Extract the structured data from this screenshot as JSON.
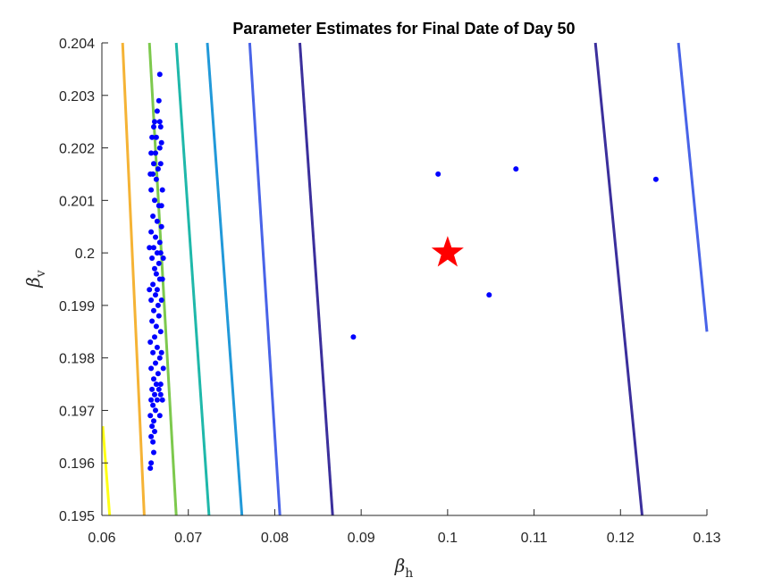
{
  "chart_data": {
    "type": "scatter",
    "title": "Parameter Estimates for Final Date of Day 50",
    "xlabel": {
      "main": "β",
      "sub": "h"
    },
    "ylabel": {
      "main": "β",
      "sub": "v"
    },
    "xlim": [
      0.06,
      0.13
    ],
    "ylim": [
      0.195,
      0.204
    ],
    "xticks": [
      "0.06",
      "0.07",
      "0.08",
      "0.09",
      "0.1",
      "0.11",
      "0.12",
      "0.13"
    ],
    "yticks": [
      "0.195",
      "0.196",
      "0.197",
      "0.198",
      "0.199",
      "0.2",
      "0.201",
      "0.202",
      "0.203",
      "0.204"
    ],
    "true_value": {
      "x": 0.1,
      "y": 0.2,
      "color": "#ff0000"
    },
    "contours": [
      {
        "color": "#ffff14",
        "points": [
          [
            0.0601,
            0.1967
          ],
          [
            0.0609,
            0.195
          ]
        ]
      },
      {
        "color": "#f5b335",
        "points": [
          [
            0.0624,
            0.204
          ],
          [
            0.0649,
            0.195
          ]
        ]
      },
      {
        "color": "#7dc94d",
        "points": [
          [
            0.0655,
            0.204
          ],
          [
            0.0686,
            0.195
          ]
        ]
      },
      {
        "color": "#1fb8aa",
        "points": [
          [
            0.0686,
            0.204
          ],
          [
            0.0724,
            0.195
          ]
        ]
      },
      {
        "color": "#2199d9",
        "points": [
          [
            0.0722,
            0.204
          ],
          [
            0.0762,
            0.195
          ]
        ]
      },
      {
        "color": "#4863e8",
        "points": [
          [
            0.0771,
            0.204
          ],
          [
            0.0806,
            0.195
          ]
        ]
      },
      {
        "color": "#3b2f9c",
        "points": [
          [
            0.0829,
            0.204
          ],
          [
            0.0867,
            0.195
          ]
        ]
      },
      {
        "color": "#3b2f9c",
        "points": [
          [
            0.1171,
            0.204
          ],
          [
            0.1225,
            0.195
          ]
        ]
      },
      {
        "color": "#4863e8",
        "points": [
          [
            0.1267,
            0.204
          ],
          [
            0.13,
            0.1985
          ]
        ]
      }
    ],
    "points_color": "#0000ff",
    "points": [
      [
        0.0891,
        0.1984
      ],
      [
        0.0989,
        0.2015
      ],
      [
        0.1048,
        0.1992
      ],
      [
        0.1079,
        0.2016
      ],
      [
        0.1241,
        0.2014
      ],
      [
        0.0667,
        0.2034
      ],
      [
        0.0666,
        0.2029
      ],
      [
        0.0664,
        0.2027
      ],
      [
        0.0667,
        0.2025
      ],
      [
        0.0668,
        0.2024
      ],
      [
        0.0661,
        0.2025
      ],
      [
        0.066,
        0.2024
      ],
      [
        0.0658,
        0.2022
      ],
      [
        0.0663,
        0.2022
      ],
      [
        0.0669,
        0.2021
      ],
      [
        0.0667,
        0.202
      ],
      [
        0.0662,
        0.2019
      ],
      [
        0.0657,
        0.2019
      ],
      [
        0.066,
        0.2017
      ],
      [
        0.0665,
        0.2016
      ],
      [
        0.0668,
        0.2017
      ],
      [
        0.0659,
        0.2015
      ],
      [
        0.0663,
        0.2014
      ],
      [
        0.067,
        0.2012
      ],
      [
        0.0657,
        0.2012
      ],
      [
        0.0661,
        0.201
      ],
      [
        0.0666,
        0.2009
      ],
      [
        0.0659,
        0.2007
      ],
      [
        0.0664,
        0.2006
      ],
      [
        0.0669,
        0.2005
      ],
      [
        0.0657,
        0.2004
      ],
      [
        0.0662,
        0.2003
      ],
      [
        0.0667,
        0.2002
      ],
      [
        0.066,
        0.2001
      ],
      [
        0.0664,
        0.2
      ],
      [
        0.0658,
        0.1999
      ],
      [
        0.0666,
        0.1998
      ],
      [
        0.0661,
        0.1997
      ],
      [
        0.0663,
        0.1996
      ],
      [
        0.0667,
        0.1995
      ],
      [
        0.0659,
        0.1994
      ],
      [
        0.0664,
        0.1993
      ],
      [
        0.0662,
        0.1992
      ],
      [
        0.0657,
        0.1991
      ],
      [
        0.0665,
        0.199
      ],
      [
        0.066,
        0.1989
      ],
      [
        0.0666,
        0.1988
      ],
      [
        0.0658,
        0.1987
      ],
      [
        0.0663,
        0.1986
      ],
      [
        0.0668,
        0.1985
      ],
      [
        0.0661,
        0.1984
      ],
      [
        0.0656,
        0.1983
      ],
      [
        0.0664,
        0.1982
      ],
      [
        0.0659,
        0.1981
      ],
      [
        0.0667,
        0.198
      ],
      [
        0.0662,
        0.1979
      ],
      [
        0.0657,
        0.1978
      ],
      [
        0.0665,
        0.1977
      ],
      [
        0.066,
        0.1976
      ],
      [
        0.0663,
        0.1975
      ],
      [
        0.0668,
        0.1975
      ],
      [
        0.0658,
        0.1974
      ],
      [
        0.0661,
        0.1973
      ],
      [
        0.0657,
        0.1972
      ],
      [
        0.0664,
        0.1972
      ],
      [
        0.0659,
        0.1971
      ],
      [
        0.0662,
        0.197
      ],
      [
        0.0656,
        0.1969
      ],
      [
        0.066,
        0.1968
      ],
      [
        0.0658,
        0.1967
      ],
      [
        0.0661,
        0.1966
      ],
      [
        0.0657,
        0.1965
      ],
      [
        0.0659,
        0.1964
      ],
      [
        0.066,
        0.1962
      ],
      [
        0.0657,
        0.196
      ],
      [
        0.0656,
        0.1959
      ],
      [
        0.0666,
        0.1974
      ],
      [
        0.0668,
        0.1973
      ],
      [
        0.067,
        0.1972
      ],
      [
        0.0671,
        0.1978
      ],
      [
        0.0669,
        0.1981
      ],
      [
        0.067,
        0.1995
      ],
      [
        0.0671,
        0.1999
      ],
      [
        0.0669,
        0.2009
      ],
      [
        0.0656,
        0.2015
      ],
      [
        0.0655,
        0.2001
      ],
      [
        0.0655,
        0.1993
      ],
      [
        0.0668,
        0.2
      ],
      [
        0.0669,
        0.1991
      ],
      [
        0.0667,
        0.1969
      ]
    ]
  }
}
